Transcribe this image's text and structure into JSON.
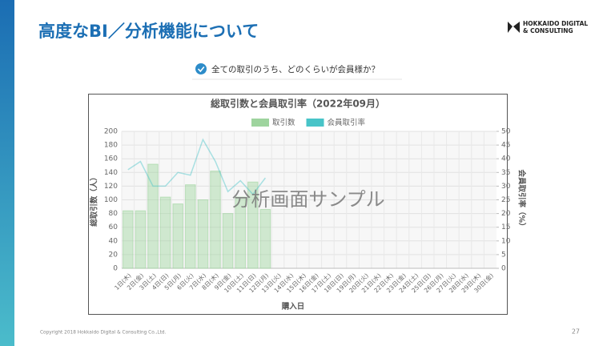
{
  "header": {
    "title": "高度なBI／分析機能について",
    "logo": [
      "HOKKAIDO DIGITAL",
      "& CONSULTING"
    ]
  },
  "question": "全ての取引のうち、どのくらいが会員様か？",
  "watermark": "分析画面サンプル",
  "footer": {
    "copyright": "Copyright 2018 Hokkaido Digital & Consulting Co.,Ltd.",
    "page": "27"
  },
  "chart_data": {
    "type": "bar_line",
    "title": "総取引数と会員取引率（2022年09月）",
    "x_label": "購入日",
    "y_label": "総取引数（人）",
    "y2_label": "会員取引率（%）",
    "categories": [
      "1日(木)",
      "2日(金)",
      "3日(土)",
      "4日(日)",
      "5日(月)",
      "6日(火)",
      "7日(水)",
      "8日(木)",
      "9日(金)",
      "10日(土)",
      "11日(日)",
      "12日(月)",
      "13日(火)",
      "14日(水)",
      "15日(木)",
      "16日(金)",
      "17日(土)",
      "18日(日)",
      "19日(月)",
      "20日(火)",
      "21日(水)",
      "22日(木)",
      "23日(金)",
      "24日(土)",
      "25日(日)",
      "26日(月)",
      "27日(火)",
      "28日(水)",
      "29日(木)",
      "30日(金)"
    ],
    "series": [
      {
        "name": "取引数",
        "type": "bar",
        "color": "#9ed49e",
        "values": [
          84,
          84,
          152,
          104,
          94,
          122,
          100,
          142,
          80,
          104,
          126,
          86,
          null,
          null,
          null,
          null,
          null,
          null,
          null,
          null,
          null,
          null,
          null,
          null,
          null,
          null,
          null,
          null,
          null,
          null
        ]
      },
      {
        "name": "会員取引率",
        "type": "line",
        "axis": "y2",
        "color": "#48c4c8",
        "values": [
          36,
          39,
          30,
          30,
          35,
          34,
          47,
          39,
          28,
          32,
          27,
          33,
          null,
          null,
          null,
          null,
          null,
          null,
          null,
          null,
          null,
          null,
          null,
          null,
          null,
          null,
          null,
          null,
          null,
          null
        ]
      }
    ],
    "ylim": [
      0,
      200
    ],
    "yticks": [
      0,
      20,
      40,
      60,
      80,
      100,
      120,
      140,
      160,
      180,
      200
    ],
    "y2lim": [
      0,
      50
    ],
    "y2ticks": [
      0,
      5,
      10,
      15,
      20,
      25,
      30,
      35,
      40,
      45,
      50
    ],
    "grid": true,
    "legend": "top"
  }
}
